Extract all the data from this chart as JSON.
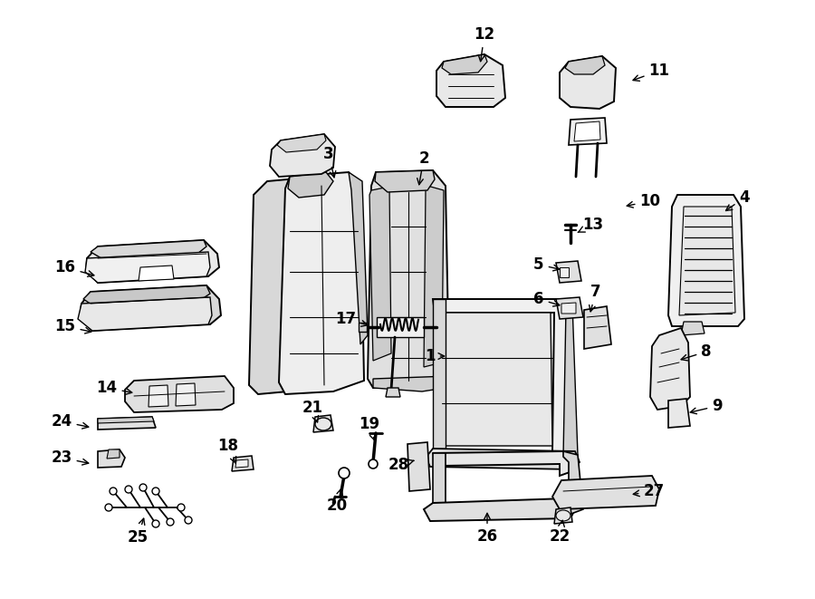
{
  "bg_color": "#ffffff",
  "line_color": "#000000",
  "figsize": [
    9.0,
    6.61
  ],
  "dpi": 100,
  "labels": [
    [
      1,
      475,
      393,
      495,
      393
    ],
    [
      2,
      468,
      175,
      462,
      208
    ],
    [
      3,
      363,
      170,
      370,
      200
    ],
    [
      4,
      822,
      218,
      798,
      235
    ],
    [
      5,
      595,
      292,
      622,
      298
    ],
    [
      6,
      595,
      330,
      622,
      338
    ],
    [
      7,
      658,
      322,
      651,
      348
    ],
    [
      8,
      780,
      388,
      748,
      398
    ],
    [
      9,
      792,
      448,
      758,
      456
    ],
    [
      10,
      718,
      222,
      688,
      228
    ],
    [
      11,
      728,
      78,
      695,
      90
    ],
    [
      12,
      535,
      38,
      530,
      72
    ],
    [
      13,
      655,
      248,
      635,
      258
    ],
    [
      14,
      118,
      428,
      150,
      434
    ],
    [
      15,
      72,
      360,
      105,
      367
    ],
    [
      16,
      72,
      295,
      108,
      305
    ],
    [
      17,
      382,
      352,
      410,
      360
    ],
    [
      18,
      252,
      492,
      262,
      515
    ],
    [
      19,
      408,
      468,
      415,
      490
    ],
    [
      20,
      372,
      558,
      378,
      535
    ],
    [
      21,
      345,
      450,
      352,
      470
    ],
    [
      22,
      618,
      592,
      622,
      570
    ],
    [
      23,
      68,
      505,
      102,
      512
    ],
    [
      24,
      68,
      465,
      102,
      472
    ],
    [
      25,
      152,
      593,
      160,
      568
    ],
    [
      26,
      538,
      592,
      538,
      562
    ],
    [
      27,
      722,
      542,
      695,
      546
    ],
    [
      28,
      440,
      513,
      458,
      508
    ]
  ]
}
